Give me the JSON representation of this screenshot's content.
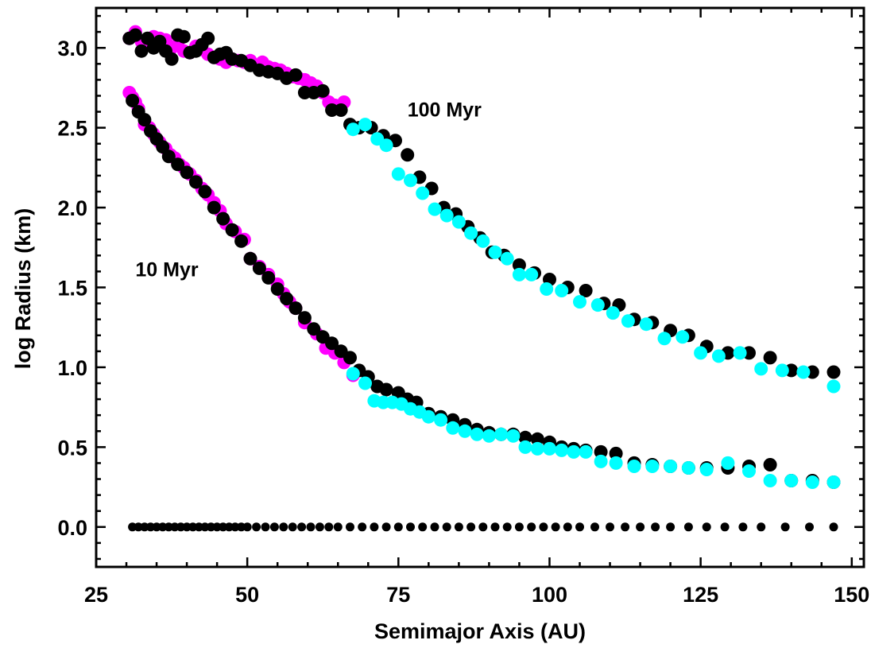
{
  "chart_data": {
    "type": "scatter",
    "title": "",
    "xlabel": "Semimajor Axis (AU)",
    "ylabel": "log Radius (km)",
    "xlim": [
      25,
      152
    ],
    "ylim": [
      -0.25,
      3.25
    ],
    "xticks": [
      25,
      50,
      75,
      100,
      125,
      150
    ],
    "yticks": [
      0.0,
      0.5,
      1.0,
      1.5,
      2.0,
      2.5,
      3.0
    ],
    "xtick_labels": [
      "25",
      "50",
      "75",
      "100",
      "125",
      "150"
    ],
    "ytick_labels": [
      "0.0",
      "0.5",
      "1.0",
      "1.5",
      "2.0",
      "2.5",
      "3.0"
    ],
    "grid": false,
    "legend": "none",
    "annotations": [
      {
        "text": "100 Myr",
        "x": 76.5,
        "y": 2.57
      },
      {
        "text": "10 Myr",
        "x": 31.5,
        "y": 1.57
      }
    ],
    "series": [
      {
        "color": "#000000",
        "marker_size": "small",
        "x": [
          31,
          32,
          33,
          34,
          35,
          36,
          37,
          38,
          39,
          40,
          41,
          42,
          43,
          44,
          45,
          46,
          47,
          48,
          49,
          50,
          51.5,
          53,
          54.5,
          56,
          57.5,
          59,
          60.5,
          62,
          63.5,
          65,
          67,
          69,
          71,
          73,
          75,
          77,
          79,
          81,
          83,
          85,
          87,
          89,
          91,
          93,
          95,
          97,
          99,
          101,
          103,
          105,
          107.5,
          110,
          112.5,
          115,
          117.5,
          120,
          123,
          126,
          129,
          132,
          135,
          139,
          143,
          147
        ],
        "y": [
          0,
          0,
          0,
          0,
          0,
          0,
          0,
          0,
          0,
          0,
          0,
          0,
          0,
          0,
          0,
          0,
          0,
          0,
          0,
          0,
          0,
          0,
          0,
          0,
          0,
          0,
          0,
          0,
          0,
          0,
          0,
          0,
          0,
          0,
          0,
          0,
          0,
          0,
          0,
          0,
          0,
          0,
          0,
          0,
          0,
          0,
          0,
          0,
          0,
          0,
          0,
          0,
          0,
          0,
          0,
          0,
          0,
          0,
          0,
          0,
          0,
          0,
          0,
          0
        ]
      },
      {
        "color": "#ff00ff",
        "x": [
          30.5,
          31,
          31.5,
          32,
          33,
          33.8,
          34.5,
          35,
          35.5,
          36.5,
          37.3,
          38,
          38.8,
          39.5,
          40.5,
          41.5,
          42.5,
          43.5,
          44.5,
          45.5,
          46.5,
          48,
          49.5,
          50.5,
          52,
          53.5,
          55,
          56,
          57,
          58,
          59.5,
          61.5,
          63,
          64.5,
          66,
          67.5
        ],
        "y": [
          2.72,
          2.69,
          2.66,
          2.62,
          2.52,
          2.5,
          2.46,
          2.43,
          2.41,
          2.37,
          2.33,
          2.31,
          2.27,
          2.25,
          2.21,
          2.17,
          2.12,
          2.08,
          2.03,
          1.98,
          1.9,
          1.85,
          1.8,
          1.68,
          1.63,
          1.58,
          1.52,
          1.46,
          1.41,
          1.37,
          1.28,
          1.21,
          1.12,
          1.09,
          1.03,
          0.95
        ]
      },
      {
        "color": "#000000",
        "x": [
          31,
          32,
          33,
          34,
          35,
          36,
          37,
          38.5,
          40,
          41.5,
          43,
          44.5,
          46,
          47.5,
          49,
          50.5,
          52,
          53.5,
          55,
          56.5,
          58,
          59.5,
          61,
          62.5,
          64,
          65.5,
          67,
          68.5,
          70,
          71.5,
          73,
          75,
          76.5,
          78,
          80,
          82,
          84,
          86,
          88,
          90,
          92,
          94,
          96,
          98,
          100,
          102,
          104,
          106,
          108.5,
          111,
          114,
          117,
          120,
          123,
          126,
          129.5,
          133,
          136.5,
          140,
          143.5,
          147
        ],
        "y": [
          2.67,
          2.6,
          2.55,
          2.48,
          2.43,
          2.38,
          2.32,
          2.27,
          2.22,
          2.16,
          2.1,
          2.0,
          1.93,
          1.86,
          1.79,
          1.68,
          1.62,
          1.56,
          1.49,
          1.43,
          1.37,
          1.31,
          1.24,
          1.19,
          1.15,
          1.1,
          1.06,
          0.98,
          0.94,
          0.88,
          0.86,
          0.84,
          0.8,
          0.78,
          0.71,
          0.69,
          0.67,
          0.64,
          0.61,
          0.59,
          0.58,
          0.58,
          0.56,
          0.55,
          0.53,
          0.5,
          0.49,
          0.48,
          0.47,
          0.46,
          0.4,
          0.39,
          0.38,
          0.37,
          0.37,
          0.37,
          0.38,
          0.39,
          0.29,
          0.29,
          0.28
        ]
      },
      {
        "color": "#00ffff",
        "x": [
          67.5,
          69.5,
          71,
          72.5,
          74,
          75.5,
          77,
          78.5,
          80,
          82,
          84,
          86,
          88,
          90,
          92,
          94,
          96,
          98,
          100,
          102,
          104,
          106,
          108.5,
          111,
          114,
          117,
          120,
          123,
          126,
          129.5,
          133,
          136.5,
          140,
          143.5,
          147
        ],
        "y": [
          0.96,
          0.9,
          0.79,
          0.78,
          0.78,
          0.77,
          0.74,
          0.72,
          0.69,
          0.67,
          0.62,
          0.6,
          0.58,
          0.57,
          0.58,
          0.57,
          0.5,
          0.49,
          0.49,
          0.48,
          0.47,
          0.47,
          0.41,
          0.4,
          0.38,
          0.38,
          0.38,
          0.37,
          0.36,
          0.4,
          0.35,
          0.29,
          0.29,
          0.28,
          0.28
        ]
      },
      {
        "color": "#ff00ff",
        "x": [
          30.5,
          31.5,
          32.5,
          33.5,
          34.5,
          35.5,
          36.5,
          37.5,
          38.5,
          39.5,
          40.5,
          41.5,
          42.5,
          43.5,
          44.5,
          45.5,
          46.5,
          47.5,
          48.5,
          49.5,
          50.5,
          51.5,
          52.5,
          53.5,
          54.5,
          55.5,
          56.5,
          57.5,
          58.5,
          59.5,
          60.5,
          61.5,
          62.5,
          63.5,
          64.5,
          66
        ],
        "y": [
          3.06,
          3.1,
          3.04,
          3.04,
          3.07,
          3.06,
          3.05,
          3.0,
          3.02,
          2.98,
          2.97,
          3.01,
          2.99,
          2.96,
          2.94,
          2.93,
          2.91,
          2.93,
          2.92,
          2.91,
          2.92,
          2.89,
          2.91,
          2.88,
          2.87,
          2.86,
          2.84,
          2.82,
          2.81,
          2.8,
          2.78,
          2.76,
          2.72,
          2.66,
          2.64,
          2.66
        ]
      },
      {
        "color": "#000000",
        "x": [
          30.5,
          31.5,
          32.5,
          33.5,
          34.5,
          35.5,
          36.5,
          37.5,
          38.5,
          39.5,
          40.5,
          41.5,
          42.5,
          43.5,
          44.5,
          45.5,
          46.5,
          47.5,
          49,
          50.5,
          52,
          53.5,
          55,
          56.5,
          58,
          59.5,
          61,
          62.5,
          64,
          65.5,
          67,
          68.5,
          70.5,
          72.5,
          74.5,
          76.5,
          78.5,
          80.5,
          82.5,
          84.5,
          86.5,
          88.5,
          90.5,
          92.5,
          95,
          97.5,
          100,
          103,
          106,
          109,
          111.5,
          114,
          117,
          120,
          123,
          126,
          129.5,
          133,
          136.5,
          140,
          143.5,
          147
        ],
        "y": [
          3.06,
          3.08,
          2.98,
          3.06,
          3.0,
          3.04,
          2.98,
          2.93,
          3.08,
          3.07,
          2.97,
          2.98,
          3.02,
          3.06,
          2.94,
          2.96,
          2.97,
          2.93,
          2.92,
          2.89,
          2.86,
          2.85,
          2.84,
          2.81,
          2.83,
          2.72,
          2.72,
          2.73,
          2.61,
          2.61,
          2.52,
          2.5,
          2.5,
          2.45,
          2.42,
          2.33,
          2.19,
          2.12,
          2.0,
          1.96,
          1.88,
          1.81,
          1.72,
          1.7,
          1.64,
          1.59,
          1.55,
          1.5,
          1.48,
          1.4,
          1.39,
          1.3,
          1.28,
          1.23,
          1.2,
          1.13,
          1.09,
          1.09,
          1.06,
          0.98,
          0.97,
          0.97
        ]
      },
      {
        "color": "#00ffff",
        "x": [
          67.5,
          69.5,
          71.5,
          73,
          75,
          77,
          79,
          81,
          83,
          85,
          87,
          89,
          91,
          93,
          95,
          97,
          99.5,
          102,
          105,
          108,
          110.5,
          113,
          116,
          119,
          122,
          125,
          128,
          131.5,
          135,
          138.5,
          142,
          147
        ],
        "y": [
          2.49,
          2.52,
          2.43,
          2.39,
          2.21,
          2.17,
          2.09,
          1.99,
          1.95,
          1.91,
          1.84,
          1.79,
          1.72,
          1.68,
          1.58,
          1.58,
          1.49,
          1.48,
          1.41,
          1.39,
          1.34,
          1.29,
          1.27,
          1.18,
          1.19,
          1.09,
          1.07,
          1.09,
          0.99,
          0.98,
          0.97,
          0.88
        ]
      }
    ]
  }
}
